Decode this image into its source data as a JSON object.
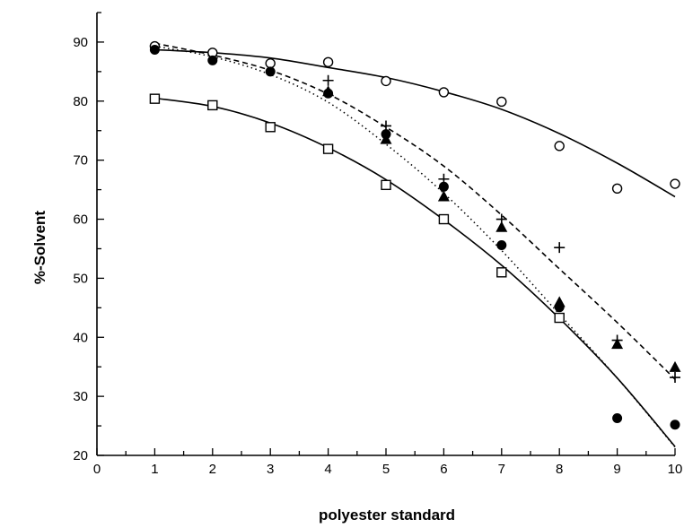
{
  "chart_data": {
    "type": "scatter",
    "title": "",
    "xlabel": "polyester standard",
    "ylabel": "%-Solvent",
    "xlim": [
      0,
      10
    ],
    "ylim": [
      20,
      95
    ],
    "x_ticks": [
      0,
      1,
      2,
      3,
      4,
      5,
      6,
      7,
      8,
      9,
      10
    ],
    "y_ticks": [
      20,
      30,
      40,
      50,
      60,
      70,
      80,
      90
    ],
    "grid": false,
    "legend": "none",
    "series": [
      {
        "marker": "open-circle",
        "x": [
          1,
          2,
          3,
          4,
          5,
          6,
          7,
          8,
          9,
          10
        ],
        "y": [
          89.3,
          88.2,
          86.4,
          86.6,
          83.4,
          81.5,
          79.9,
          72.4,
          65.2,
          66.0
        ],
        "fit": {
          "style": "solid",
          "x": [
            1,
            2,
            3,
            4,
            5,
            6,
            7,
            8,
            9,
            10
          ],
          "y": [
            88.7,
            88.2,
            87.3,
            85.7,
            84.0,
            81.6,
            78.6,
            74.5,
            69.5,
            63.8
          ]
        }
      },
      {
        "marker": "filled-circle",
        "x": [
          1,
          2,
          3,
          4,
          5,
          6,
          7,
          8,
          9,
          10
        ],
        "y": [
          88.7,
          86.9,
          85.0,
          81.3,
          74.4,
          65.5,
          55.6,
          45.1,
          26.3,
          25.2
        ],
        "fit": {
          "style": "dotted",
          "x": [
            1,
            2,
            3,
            4,
            5,
            6,
            7,
            8,
            9,
            10
          ],
          "y": [
            89.3,
            87.5,
            84.5,
            79.8,
            72.7,
            64.4,
            54.7,
            43.9,
            33.1,
            21.4
          ]
        }
      },
      {
        "marker": "filled-triangle",
        "x": [
          4,
          5,
          6,
          7,
          8,
          9,
          10
        ],
        "y": [
          81.6,
          73.5,
          63.8,
          58.6,
          45.9,
          38.8,
          34.9
        ],
        "fit": null
      },
      {
        "marker": "plus",
        "x": [
          4,
          5,
          6,
          7,
          8,
          9,
          10
        ],
        "y": [
          83.5,
          75.8,
          66.8,
          60.0,
          55.2,
          39.5,
          33.2
        ],
        "fit": {
          "style": "dashed",
          "x": [
            1,
            2,
            3,
            4,
            5,
            6,
            7,
            8,
            9,
            10
          ],
          "y": [
            89.8,
            87.8,
            85.2,
            81.2,
            75.6,
            69.0,
            60.7,
            51.6,
            42.5,
            32.9
          ]
        }
      },
      {
        "marker": "open-square",
        "x": [
          1,
          2,
          3,
          4,
          5,
          6,
          7,
          8
        ],
        "y": [
          80.4,
          79.3,
          75.6,
          71.9,
          65.8,
          60.0,
          51.0,
          43.3
        ],
        "fit": {
          "style": "solid",
          "x": [
            1,
            2,
            3,
            4,
            5,
            6,
            7,
            8,
            9,
            10
          ],
          "y": [
            80.5,
            79.1,
            76.3,
            72.1,
            66.7,
            59.9,
            52.2,
            43.2,
            33.1,
            21.5
          ]
        }
      }
    ]
  }
}
